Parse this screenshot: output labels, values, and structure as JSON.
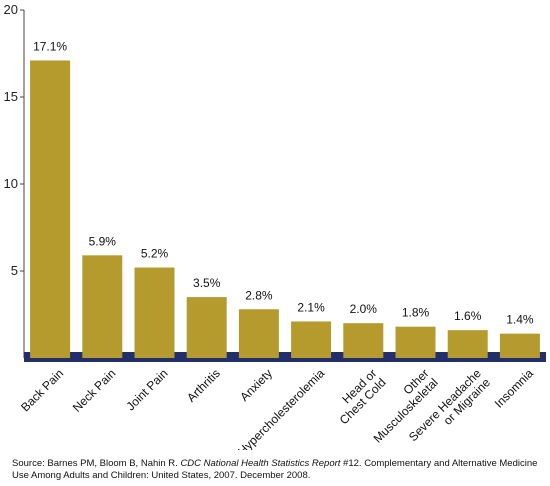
{
  "chart_data": {
    "type": "bar",
    "title": "",
    "xlabel": "",
    "ylabel": "",
    "ylim": [
      0,
      20
    ],
    "yticks": [
      5,
      10,
      15,
      20
    ],
    "grid": false,
    "bar_color": "#b59a2e",
    "baseline_color": "#232f6b",
    "categories": [
      [
        "Back Pain"
      ],
      [
        "Neck Pain"
      ],
      [
        "Joint Pain"
      ],
      [
        "Arthritis"
      ],
      [
        "Anxiety"
      ],
      [
        "Hypercholesterolemia"
      ],
      [
        "Head or",
        "Chest Cold"
      ],
      [
        "Other",
        "Musculoskeletal"
      ],
      [
        "Severe Headache",
        "or Migraine"
      ],
      [
        "Insomnia"
      ]
    ],
    "values": [
      17.1,
      5.9,
      5.2,
      3.5,
      2.8,
      2.1,
      2.0,
      1.8,
      1.6,
      1.4
    ],
    "data_labels": [
      "17.1%",
      "5.9%",
      "5.2%",
      "3.5%",
      "2.8%",
      "2.1%",
      "2.0%",
      "1.8%",
      "1.6%",
      "1.4%"
    ]
  },
  "source": {
    "prefix": "Source: Barnes PM, Bloom B, Nahin R. ",
    "report_italic": "CDC National Health Statistics Report",
    "suffix": " #12. Complementary and Alternative Medicine Use Among Adults and Children: United States, 2007. December 2008."
  }
}
